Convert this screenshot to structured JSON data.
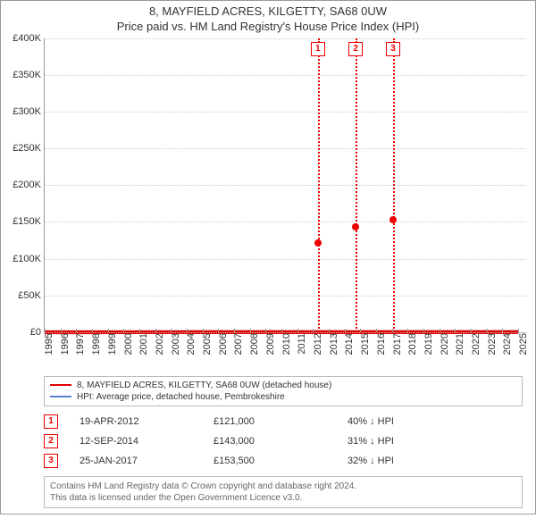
{
  "title_line1": "8, MAYFIELD ACRES, KILGETTY, SA68 0UW",
  "title_line2": "Price paid vs. HM Land Registry's House Price Index (HPI)",
  "chart": {
    "ylim": [
      0,
      400000
    ],
    "ytick_step": 50000,
    "yticks": [
      "£0",
      "£50K",
      "£100K",
      "£150K",
      "£200K",
      "£250K",
      "£300K",
      "£350K",
      "£400K"
    ],
    "xstart": 1995,
    "xend": 2025.5,
    "xticks": [
      1995,
      1996,
      1997,
      1998,
      1999,
      2000,
      2001,
      2002,
      2003,
      2004,
      2005,
      2006,
      2007,
      2008,
      2009,
      2010,
      2011,
      2012,
      2013,
      2014,
      2015,
      2016,
      2017,
      2018,
      2019,
      2020,
      2021,
      2022,
      2023,
      2024,
      2025
    ],
    "grid_color": "#cccccc",
    "background_color": "#ffffff",
    "series": [
      {
        "name": "hpi",
        "color": "#5b7fd6",
        "width": 1.4,
        "data": [
          [
            1995,
            58
          ],
          [
            1995.5,
            60
          ],
          [
            1996,
            60
          ],
          [
            1996.5,
            62
          ],
          [
            1997,
            58
          ],
          [
            1997.5,
            65
          ],
          [
            1998,
            68
          ],
          [
            1998.5,
            70
          ],
          [
            1999,
            72
          ],
          [
            1999.5,
            78
          ],
          [
            2000,
            82
          ],
          [
            2000.5,
            88
          ],
          [
            2001,
            92
          ],
          [
            2001.5,
            100
          ],
          [
            2002,
            110
          ],
          [
            2002.5,
            120
          ],
          [
            2003,
            135
          ],
          [
            2003.5,
            150
          ],
          [
            2004,
            165
          ],
          [
            2004.5,
            185
          ],
          [
            2005,
            200
          ],
          [
            2005.5,
            210
          ],
          [
            2006,
            218
          ],
          [
            2006.5,
            225
          ],
          [
            2007,
            235
          ],
          [
            2007.5,
            238
          ],
          [
            2008,
            232
          ],
          [
            2008.5,
            210
          ],
          [
            2009,
            195
          ],
          [
            2009.5,
            205
          ],
          [
            2010,
            210
          ],
          [
            2010.5,
            212
          ],
          [
            2011,
            208
          ],
          [
            2011.5,
            205
          ],
          [
            2012,
            203
          ],
          [
            2012.5,
            207
          ],
          [
            2013,
            208
          ],
          [
            2013.5,
            210
          ],
          [
            2014,
            212
          ],
          [
            2014.5,
            215
          ],
          [
            2015,
            218
          ],
          [
            2015.5,
            222
          ],
          [
            2016,
            225
          ],
          [
            2016.5,
            230
          ],
          [
            2017,
            233
          ],
          [
            2017.5,
            238
          ],
          [
            2018,
            240
          ],
          [
            2018.5,
            245
          ],
          [
            2019,
            248
          ],
          [
            2019.5,
            252
          ],
          [
            2020,
            255
          ],
          [
            2020.5,
            268
          ],
          [
            2021,
            285
          ],
          [
            2021.5,
            300
          ],
          [
            2022,
            320
          ],
          [
            2022.5,
            340
          ],
          [
            2023,
            330
          ],
          [
            2023.5,
            320
          ],
          [
            2024,
            325
          ],
          [
            2024.5,
            315
          ],
          [
            2025,
            310
          ]
        ]
      },
      {
        "name": "property",
        "color": "#e00000",
        "width": 1.4,
        "data": [
          [
            1995,
            40
          ],
          [
            1995.5,
            40
          ],
          [
            1996,
            42
          ],
          [
            1996.5,
            41
          ],
          [
            1997,
            40
          ],
          [
            1997.5,
            42
          ],
          [
            1998,
            43
          ],
          [
            1998.5,
            45
          ],
          [
            1999,
            46
          ],
          [
            1999.5,
            48
          ],
          [
            2000,
            50
          ],
          [
            2000.5,
            53
          ],
          [
            2001,
            55
          ],
          [
            2001.5,
            60
          ],
          [
            2002,
            65
          ],
          [
            2002.5,
            72
          ],
          [
            2003,
            80
          ],
          [
            2003.5,
            90
          ],
          [
            2004,
            100
          ],
          [
            2004.5,
            110
          ],
          [
            2005,
            120
          ],
          [
            2005.5,
            125
          ],
          [
            2006,
            130
          ],
          [
            2006.5,
            135
          ],
          [
            2007,
            140
          ],
          [
            2007.5,
            142
          ],
          [
            2008,
            138
          ],
          [
            2008.5,
            128
          ],
          [
            2009,
            120
          ],
          [
            2009.5,
            125
          ],
          [
            2010,
            128
          ],
          [
            2010.5,
            130
          ],
          [
            2011,
            126
          ],
          [
            2011.5,
            124
          ],
          [
            2012,
            121
          ],
          [
            2012.3,
            121
          ],
          [
            2012.5,
            125
          ],
          [
            2013,
            126
          ],
          [
            2013.5,
            128
          ],
          [
            2014,
            130
          ],
          [
            2014.7,
            143
          ],
          [
            2015,
            145
          ],
          [
            2015.5,
            148
          ],
          [
            2016,
            150
          ],
          [
            2016.5,
            152
          ],
          [
            2017.07,
            153.5
          ],
          [
            2017.5,
            158
          ],
          [
            2018,
            160
          ],
          [
            2018.5,
            163
          ],
          [
            2019,
            165
          ],
          [
            2019.5,
            168
          ],
          [
            2020,
            170
          ],
          [
            2020.5,
            178
          ],
          [
            2021,
            190
          ],
          [
            2021.5,
            200
          ],
          [
            2022,
            212
          ],
          [
            2022.5,
            225
          ],
          [
            2023,
            218
          ],
          [
            2023.5,
            212
          ],
          [
            2024,
            215
          ],
          [
            2024.5,
            210
          ],
          [
            2025,
            212
          ]
        ]
      }
    ],
    "sale_points": [
      {
        "x": 2012.3,
        "y": 121
      },
      {
        "x": 2014.7,
        "y": 143
      },
      {
        "x": 2017.07,
        "y": 153.5
      }
    ]
  },
  "legend": [
    {
      "label": "8, MAYFIELD ACRES, KILGETTY, SA68 0UW (detached house)",
      "color": "#e00000"
    },
    {
      "label": "HPI: Average price, detached house, Pembrokeshire",
      "color": "#5b7fd6"
    }
  ],
  "events": [
    {
      "n": "1",
      "date": "19-APR-2012",
      "price": "£121,000",
      "vs": "40% ↓ HPI"
    },
    {
      "n": "2",
      "date": "12-SEP-2014",
      "price": "£143,000",
      "vs": "31% ↓ HPI"
    },
    {
      "n": "3",
      "date": "25-JAN-2017",
      "price": "£153,500",
      "vs": "32% ↓ HPI"
    }
  ],
  "footnote_line1": "Contains HM Land Registry data © Crown copyright and database right 2024.",
  "footnote_line2": "This data is licensed under the Open Government Licence v3.0."
}
